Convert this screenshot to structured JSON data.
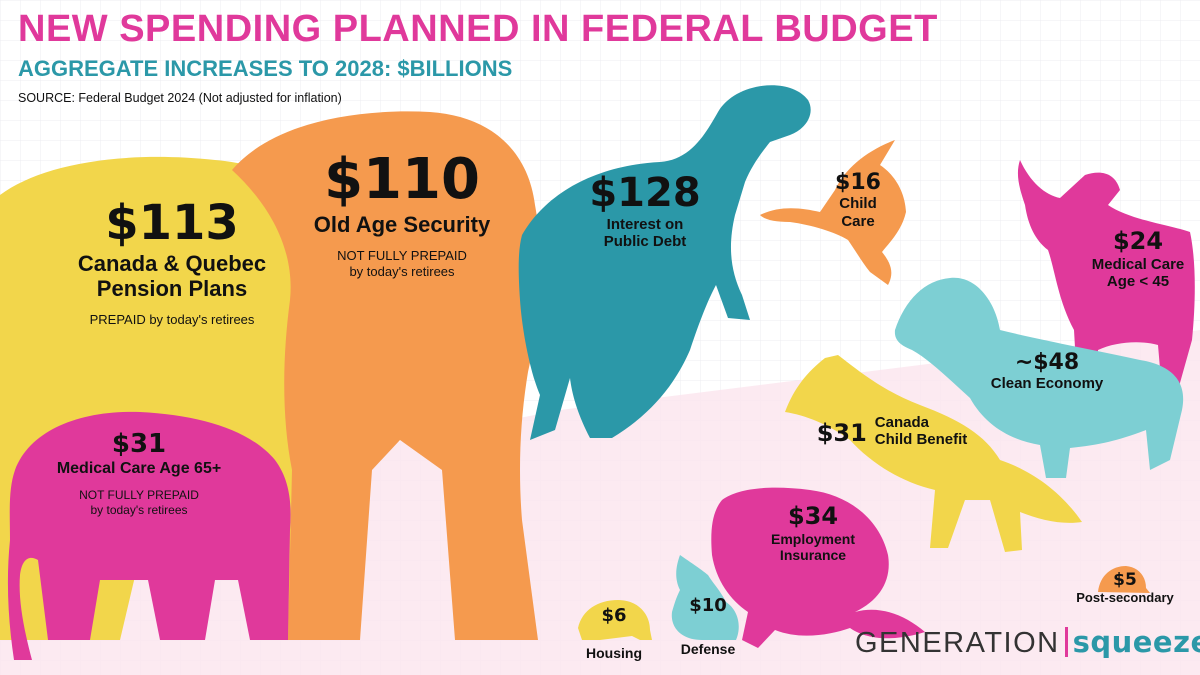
{
  "header": {
    "title": "NEW SPENDING PLANNED IN FEDERAL BUDGET",
    "subtitle": "AGGREGATE INCREASES TO 2028: $BILLIONS",
    "source": "SOURCE: Federal Budget 2024 (Not adjusted for inflation)"
  },
  "brand": {
    "part1": "GENERATION",
    "part2": "squeeze"
  },
  "colors": {
    "magenta": "#e0399b",
    "teal": "#2b98a8",
    "yellow": "#f2d64b",
    "orange": "#f59a4e",
    "light_teal": "#7dcfd3",
    "background": "#ffffff",
    "floor_pink": "#fbe6ef"
  },
  "chart_data": {
    "type": "pictograph",
    "title": "NEW SPENDING PLANNED IN FEDERAL BUDGET",
    "subtitle": "AGGREGATE INCREASES TO 2028: $BILLIONS",
    "unit": "$ billions",
    "items": [
      {
        "id": "cpp",
        "animal": "elephant",
        "color": "yellow",
        "value": 113,
        "value_label": "$113",
        "label_lines": [
          "Canada & Quebec",
          "Pension Plans"
        ],
        "note_lines": [
          "PREPAID by today's retirees"
        ]
      },
      {
        "id": "oas",
        "animal": "elephant",
        "color": "orange",
        "value": 110,
        "value_label": "$110",
        "label_lines": [
          "Old Age Security"
        ],
        "note_lines": [
          "NOT FULLY PREPAID",
          "by today's retirees"
        ]
      },
      {
        "id": "debt",
        "animal": "t-rex",
        "color": "teal",
        "value": 128,
        "value_label": "$128",
        "label_lines": [
          "Interest on",
          "Public Debt"
        ],
        "note_lines": []
      },
      {
        "id": "childcare",
        "animal": "goose",
        "color": "orange",
        "value": 16,
        "value_label": "$16",
        "label_lines": [
          "Child",
          "Care"
        ],
        "note_lines": []
      },
      {
        "id": "med45",
        "animal": "moose",
        "color": "magenta",
        "value": 24,
        "value_label": "$24",
        "label_lines": [
          "Medical Care",
          "Age < 45"
        ],
        "note_lines": []
      },
      {
        "id": "clean",
        "animal": "bighorn sheep",
        "color": "light_teal",
        "value": 48,
        "value_label": "~$48",
        "label_lines": [
          "Clean Economy"
        ],
        "note_lines": []
      },
      {
        "id": "ccb",
        "animal": "fox",
        "color": "yellow",
        "value": 31,
        "value_label": "$31",
        "label_lines": [
          "Canada",
          "Child Benefit"
        ],
        "note_lines": []
      },
      {
        "id": "med65",
        "animal": "baby elephant",
        "color": "magenta",
        "value": 31,
        "value_label": "$31",
        "label_lines": [
          "Medical Care Age 65+"
        ],
        "note_lines": [
          "NOT FULLY PREPAID",
          "by today's retirees"
        ]
      },
      {
        "id": "ei",
        "animal": "beaver",
        "color": "magenta",
        "value": 34,
        "value_label": "$34",
        "label_lines": [
          "Employment",
          "Insurance"
        ],
        "note_lines": []
      },
      {
        "id": "housing",
        "animal": "hedgehog",
        "color": "yellow",
        "value": 6,
        "value_label": "$6",
        "label_lines": [
          "Housing"
        ],
        "note_lines": []
      },
      {
        "id": "defense",
        "animal": "rabbit",
        "color": "light_teal",
        "value": 10,
        "value_label": "$10",
        "label_lines": [
          "Defense"
        ],
        "note_lines": []
      },
      {
        "id": "postsec",
        "animal": "snail",
        "color": "orange",
        "value": 5,
        "value_label": "$5",
        "label_lines": [
          "Post-secondary"
        ],
        "note_lines": []
      }
    ]
  }
}
